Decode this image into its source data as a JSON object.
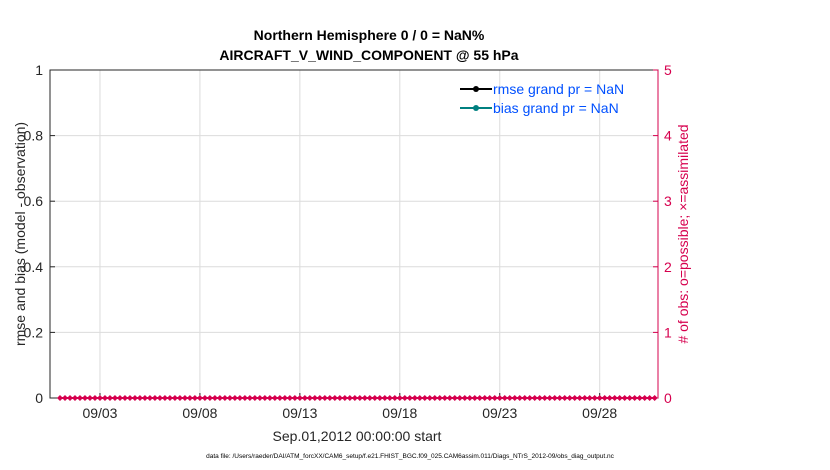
{
  "chart_data": {
    "type": "line",
    "title": [
      "Northern Hemisphere 0 / 0 = NaN%",
      "AIRCRAFT_V_WIND_COMPONENT @ 55 hPa"
    ],
    "xlabel": "Sep.01,2012 00:00:00 start",
    "ylabel": "rmse and bias (model - observation)",
    "ylabel_right": "# of obs: o=possible; ×=assimilated",
    "ylim": [
      0,
      1
    ],
    "ylim_right": [
      0,
      5
    ],
    "yticks": [
      "0",
      "0.2",
      "0.4",
      "0.6",
      "0.8",
      "1"
    ],
    "yticks_right": [
      "0",
      "1",
      "2",
      "3",
      "4",
      "5"
    ],
    "xticks": [
      "09/03",
      "09/08",
      "09/13",
      "09/18",
      "09/23",
      "09/28"
    ],
    "x_range": [
      "2012-08-31 12:00",
      "2012-09-30 22:00"
    ],
    "grid": true,
    "legend_position": "top-right",
    "series": [
      {
        "name": "rmse grand pr = NaN",
        "color": "#000000",
        "values": []
      },
      {
        "name": "bias grand pr = NaN",
        "color": "#008080",
        "values": []
      }
    ],
    "obs_counts": {
      "color": "#d6004e",
      "first": "2012-09-01 00:00",
      "last": "2012-09-30 18:00",
      "step_hours": 6,
      "possible": 0,
      "assimilated": 0
    },
    "legend_text_color": "#0050ff"
  },
  "footer": "data file: /Users/raeder/DAI/ATM_forcXX/CAM6_setup/f.e21.FHIST_BGC.f09_025.CAM6assim.011/Diags_NTrS_2012-09/obs_diag_output.nc"
}
